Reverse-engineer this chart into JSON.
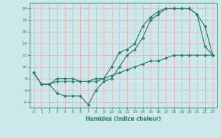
{
  "xlabel": "Humidex (Indice chaleur)",
  "bg_color": "#cce8ea",
  "grid_color": "#e8b4b4",
  "line_color": "#2e7d6e",
  "xlim": [
    -0.5,
    23.5
  ],
  "ylim": [
    3,
    21
  ],
  "xticks": [
    0,
    1,
    2,
    3,
    4,
    5,
    6,
    7,
    8,
    9,
    10,
    11,
    12,
    13,
    14,
    15,
    16,
    17,
    18,
    19,
    20,
    21,
    22,
    23
  ],
  "yticks": [
    4,
    6,
    8,
    10,
    12,
    14,
    16,
    18,
    20
  ],
  "series1_x": [
    0,
    1,
    2,
    3,
    4,
    5,
    6,
    7,
    8,
    9,
    10,
    11,
    12,
    13,
    14,
    15,
    16,
    17,
    18,
    19,
    20,
    21,
    22,
    23
  ],
  "series1_y": [
    9,
    7,
    7,
    8,
    8,
    8,
    7.5,
    7.5,
    8,
    8,
    10,
    12.5,
    13,
    14,
    17,
    18.5,
    19.5,
    20,
    20,
    20,
    20,
    19,
    17,
    12
  ],
  "series2_x": [
    0,
    1,
    2,
    3,
    4,
    5,
    6,
    7,
    8,
    9,
    10,
    11,
    12,
    13,
    14,
    15,
    16,
    17,
    18,
    19,
    20,
    21,
    22,
    23
  ],
  "series2_y": [
    9,
    7,
    7,
    5.5,
    5,
    5,
    5,
    3.5,
    6,
    7.5,
    8,
    10,
    12,
    13,
    15,
    18,
    19,
    20,
    20,
    20,
    20,
    19,
    13.5,
    12
  ],
  "series3_x": [
    0,
    1,
    2,
    3,
    4,
    5,
    6,
    7,
    8,
    9,
    10,
    11,
    12,
    13,
    14,
    15,
    16,
    17,
    18,
    19,
    20,
    21,
    22,
    23
  ],
  "series3_y": [
    9,
    7,
    7,
    7.5,
    7.5,
    7.5,
    7.5,
    7.5,
    7.5,
    8,
    8.5,
    9,
    9.5,
    10,
    10.5,
    11,
    11,
    11.5,
    12,
    12,
    12,
    12,
    12,
    12
  ]
}
